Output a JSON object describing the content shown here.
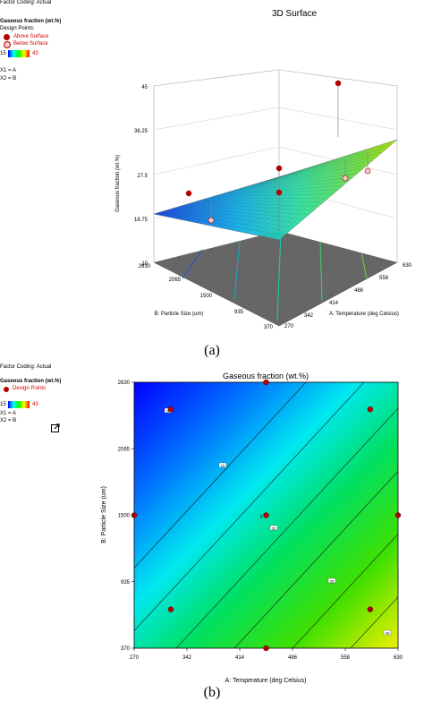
{
  "panel_a": {
    "factor_coding": "Factor Coding: Actual",
    "response_label": "Gaseous fraction (wt.%)",
    "design_points_label": "Design Points:",
    "above_surface": "Above Surface",
    "below_surface": "Below Surface",
    "scale_min": "15",
    "scale_max": "43",
    "x1": "X1 = A",
    "x2": "X2 = B",
    "title": "3D Surface",
    "caption": "(a)"
  },
  "panel_b": {
    "factor_coding": "Factor Coding: Actual",
    "response_label": "Gaseous fraction (wt.%)",
    "design_points_label": "Design Points",
    "scale_min": "15",
    "scale_max": "43",
    "x1": "X1 = A",
    "x2": "X2 = B",
    "title": "Gaseous fraction (wt.%)",
    "caption": "(b)"
  },
  "colors": {
    "above": "#b30000",
    "below_fill": "#f4cccc",
    "floor": "#666666"
  },
  "chart_data": [
    {
      "type": "surface",
      "title": "3D Surface",
      "xlabel": "A: Temperature (deg Celsius)",
      "ylabel": "B: Particle Size (um)",
      "zlabel": "Gaseous fraction (wt.%)",
      "x_ticks": [
        "270",
        "342",
        "414",
        "486",
        "558",
        "630"
      ],
      "y_ticks": [
        "370",
        "935",
        "1500",
        "2065",
        "2630"
      ],
      "z_ticks": [
        "10",
        "18.75",
        "27.5",
        "36.25",
        "45"
      ],
      "xlim": [
        270,
        630
      ],
      "ylim": [
        370,
        2630
      ],
      "zlim": [
        10,
        45
      ],
      "surface_corners": {
        "x270_y2630": 12.5,
        "x630_y2630": 30.5,
        "x270_y370": 20.0,
        "x630_y370": 38.0
      },
      "points_above": [
        [
          450,
          2630,
          42.0
        ],
        [
          450,
          1500,
          28.5
        ],
        [
          450,
          370,
          30.5
        ],
        [
          270,
          1500,
          23.5
        ]
      ],
      "points_below": [
        [
          558,
          1500,
          27.5
        ],
        [
          630,
          1500,
          32.0
        ],
        [
          342,
          2065,
          11.5
        ]
      ]
    },
    {
      "type": "contour",
      "title": "Gaseous fraction (wt.%)",
      "xlabel": "A: Temperature (deg Celsius)",
      "ylabel": "B: Particle Size (um)",
      "x_ticks": [
        "270",
        "342",
        "414",
        "486",
        "558",
        "630"
      ],
      "y_ticks": [
        "370",
        "935",
        "1500",
        "2065",
        "2630"
      ],
      "xlim": [
        270,
        630
      ],
      "ylim": [
        370,
        2630
      ],
      "contour_labels": [
        "15",
        "20",
        "25",
        "30",
        "35",
        "40"
      ],
      "design_points": [
        [
          320,
          2400
        ],
        [
          592,
          2400
        ],
        [
          270,
          1500
        ],
        [
          450,
          1500
        ],
        [
          630,
          1500
        ],
        [
          320,
          700
        ],
        [
          592,
          700
        ],
        [
          450,
          370
        ],
        [
          450,
          2630
        ]
      ],
      "center_point_label": "5"
    }
  ]
}
